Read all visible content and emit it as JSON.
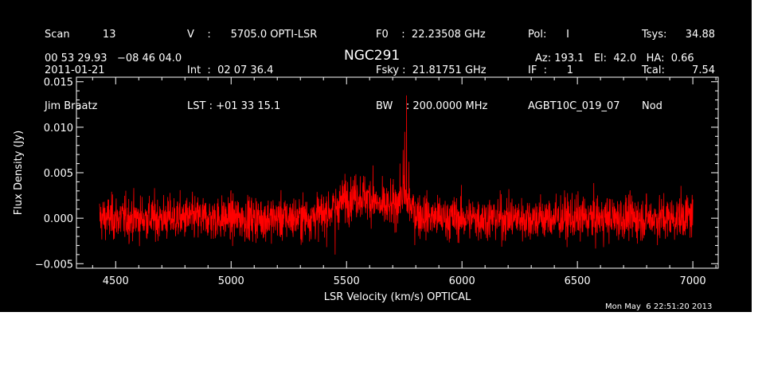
{
  "header": {
    "col1": [
      "Scan          13",
      "2011-01-21",
      "Jim Braatz"
    ],
    "col2": [
      "V    :      5705.0 OPTI-LSR",
      "Int  :  02 07 36.4",
      "LST : +01 33 15.1"
    ],
    "col3": [
      "F0    :  22.23508 GHz",
      "Fsky :  21.81751 GHz",
      "BW    : 200.0000 MHz"
    ],
    "col4": [
      "Pol:      I",
      "IF  :      1",
      "AGBT10C_019_07"
    ],
    "col5": [
      "Tsys:",
      "Tcal:",
      "Nod"
    ],
    "col6": [
      "34.88",
      "7.54",
      ""
    ],
    "coords": "00 53 29.93   −08 46 04.0",
    "source": "NGC291",
    "pointing": "Az: 193.1   El:  42.0   HA:  0.66"
  },
  "timestamp": "Mon May  6 22:51:20 2013",
  "colors": {
    "background": "#000000",
    "axes": "#ffffff",
    "trace": "#ff0000"
  },
  "chart_data": {
    "type": "line",
    "title": "NGC291",
    "xlabel": "LSR Velocity (km/s) OPTICAL",
    "ylabel": "Flux Density (Jy)",
    "xlim": [
      4330,
      7110
    ],
    "ylim": [
      -0.0055,
      0.0155
    ],
    "xticks": [
      4500,
      5000,
      5500,
      6000,
      6500,
      7000
    ],
    "xtick_labels": [
      "4500",
      "5000",
      "5500",
      "6000",
      "6500",
      "7000"
    ],
    "yticks": [
      -0.005,
      0.0,
      0.005,
      0.01,
      0.015
    ],
    "ytick_labels": [
      "−0.005",
      "0.000",
      "0.005",
      "0.010",
      "0.015"
    ],
    "grid": false,
    "series": [
      {
        "x_range": [
          4430,
          7000
        ],
        "x": [
          4430,
          4500,
          4600,
          4700,
          4800,
          4900,
          5000,
          5100,
          5200,
          5300,
          5400,
          5450,
          5500,
          5550,
          5600,
          5650,
          5700,
          5740,
          5760,
          5800,
          5900,
          6000,
          6100,
          6200,
          6300,
          6400,
          6500,
          6600,
          6700,
          6800,
          6900,
          7000
        ],
        "y": [
          0.0,
          0.0,
          0.0,
          0.0,
          0.0,
          0.0,
          0.0,
          0.0,
          0.0,
          0.0,
          0.0004,
          0.0012,
          0.0022,
          0.0025,
          0.0022,
          0.0012,
          0.0012,
          0.0025,
          0.002,
          0.0005,
          0.0,
          0.0,
          0.0,
          0.0,
          0.0,
          0.0,
          0.0,
          0.0,
          0.0,
          0.0,
          0.0,
          0.0003
        ],
        "noise_rms": 0.0012,
        "spikes": [
          {
            "x": 5760,
            "y": 0.0135
          },
          {
            "x": 5752,
            "y": 0.0095
          },
          {
            "x": 5745,
            "y": 0.0075
          },
          {
            "x": 5770,
            "y": 0.0062
          },
          {
            "x": 5615,
            "y": 0.0058
          },
          {
            "x": 5450,
            "y": -0.004
          }
        ]
      }
    ]
  }
}
